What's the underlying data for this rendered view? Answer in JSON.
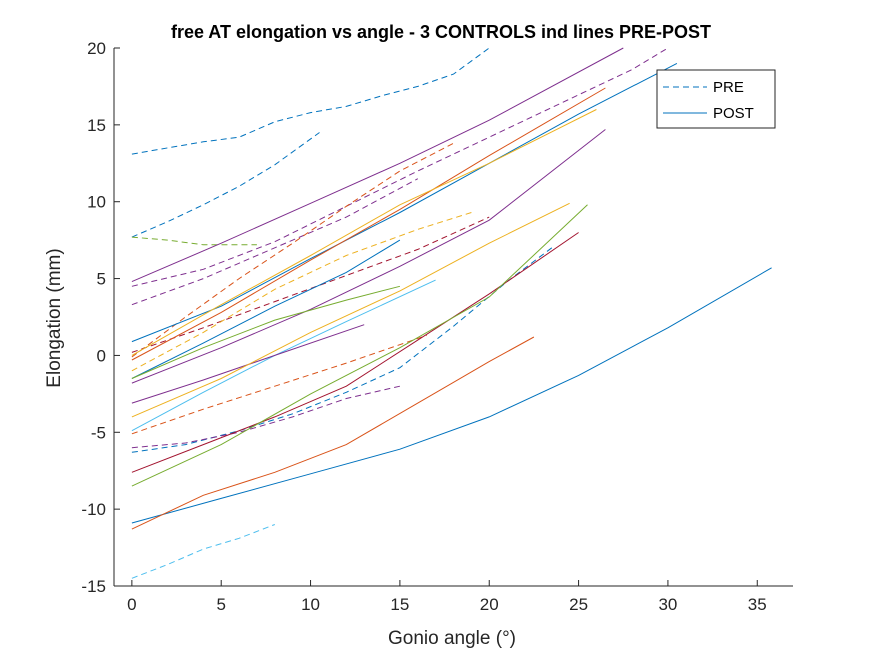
{
  "chart_data": {
    "type": "line",
    "title": "free AT elongation vs angle - 3 CONTROLS ind lines PRE-POST",
    "xlabel": "Gonio angle (°)",
    "ylabel": "Elongation (mm)",
    "xlim": [
      -1,
      37
    ],
    "ylim": [
      -15,
      20
    ],
    "xticks": [
      0,
      5,
      10,
      15,
      20,
      25,
      30,
      35
    ],
    "yticks": [
      -15,
      -10,
      -5,
      0,
      5,
      10,
      15,
      20
    ],
    "grid": false,
    "legend": {
      "position": "top-right",
      "entries": [
        {
          "label": "PRE",
          "style": "dashed",
          "color": "#0072BD"
        },
        {
          "label": "POST",
          "style": "solid",
          "color": "#0072BD"
        }
      ]
    },
    "series": [
      {
        "color": "#0072BD",
        "style": "dashed",
        "x": [
          0,
          2,
          4,
          6,
          8,
          10,
          12,
          14,
          16,
          18,
          20
        ],
        "y": [
          13.1,
          13.5,
          13.9,
          14.2,
          15.2,
          15.8,
          16.2,
          16.9,
          17.5,
          18.3,
          20
        ]
      },
      {
        "color": "#0072BD",
        "style": "dashed",
        "x": [
          0,
          2,
          4,
          6,
          8,
          10.5
        ],
        "y": [
          7.7,
          8.7,
          9.8,
          11.0,
          12.4,
          14.5
        ]
      },
      {
        "color": "#0072BD",
        "style": "dashed",
        "x": [
          0,
          3,
          6,
          9,
          12,
          15,
          18,
          21,
          23.5
        ],
        "y": [
          -6.3,
          -5.8,
          -4.9,
          -3.8,
          -2.4,
          -0.8,
          1.9,
          4.8,
          7.0
        ]
      },
      {
        "color": "#4DBEEE",
        "style": "dashed",
        "x": [
          0,
          2,
          4,
          6,
          8
        ],
        "y": [
          -14.5,
          -13.6,
          -12.6,
          -11.9,
          -11.0
        ]
      },
      {
        "color": "#77AC30",
        "style": "dashed",
        "x": [
          0,
          2,
          4,
          6,
          7
        ],
        "y": [
          7.7,
          7.5,
          7.2,
          7.2,
          7.2
        ]
      },
      {
        "color": "#7E2F8E",
        "style": "dashed",
        "x": [
          0,
          4,
          8,
          12,
          16,
          20,
          24,
          28,
          30
        ],
        "y": [
          4.5,
          5.6,
          7.4,
          9.7,
          12.0,
          14.2,
          16.4,
          18.6,
          20
        ]
      },
      {
        "color": "#7E2F8E",
        "style": "dashed",
        "x": [
          0,
          4,
          8,
          12,
          16
        ],
        "y": [
          3.3,
          5.0,
          7.0,
          9.0,
          11.5
        ]
      },
      {
        "color": "#7E2F8E",
        "style": "dashed",
        "x": [
          0,
          3,
          6,
          9,
          12,
          15
        ],
        "y": [
          -6.0,
          -5.7,
          -5.0,
          -4.0,
          -2.8,
          -2.0
        ]
      },
      {
        "color": "#D95319",
        "style": "dashed",
        "x": [
          0,
          3,
          6,
          9,
          12,
          15,
          18
        ],
        "y": [
          -0.1,
          2.5,
          5.0,
          7.3,
          9.7,
          12.0,
          13.8
        ]
      },
      {
        "color": "#D95319",
        "style": "dashed",
        "x": [
          0,
          4,
          8,
          12,
          16.5
        ],
        "y": [
          -5.1,
          -3.5,
          -2.0,
          -0.5,
          1.3
        ]
      },
      {
        "color": "#A2142F",
        "style": "dashed",
        "x": [
          0,
          4,
          8,
          12,
          16,
          20
        ],
        "y": [
          0.2,
          1.8,
          3.5,
          5.2,
          6.9,
          9.0
        ]
      },
      {
        "color": "#EDB120",
        "style": "dashed",
        "x": [
          0,
          4,
          8,
          12,
          16,
          19
        ],
        "y": [
          -1.0,
          1.5,
          4.3,
          6.5,
          8.2,
          9.3
        ]
      },
      {
        "color": "#0072BD",
        "style": "solid",
        "x": [
          0,
          5,
          10,
          15,
          20,
          25,
          30.5
        ],
        "y": [
          0.9,
          3.2,
          6.3,
          9.3,
          12.5,
          15.7,
          19.0
        ]
      },
      {
        "color": "#0072BD",
        "style": "solid",
        "x": [
          0,
          5,
          10,
          15,
          20,
          25,
          30,
          35.8
        ],
        "y": [
          -10.9,
          -9.3,
          -7.7,
          -6.1,
          -4.0,
          -1.3,
          1.8,
          5.7
        ]
      },
      {
        "color": "#0072BD",
        "style": "solid",
        "x": [
          0,
          4,
          8,
          12,
          15
        ],
        "y": [
          -1.5,
          0.8,
          3.2,
          5.4,
          7.5
        ]
      },
      {
        "color": "#4DBEEE",
        "style": "solid",
        "x": [
          0,
          4,
          8,
          12,
          17
        ],
        "y": [
          -4.9,
          -2.4,
          0.0,
          2.2,
          4.9
        ]
      },
      {
        "color": "#7E2F8E",
        "style": "solid",
        "x": [
          0,
          5,
          10,
          15,
          20,
          27.5
        ],
        "y": [
          4.8,
          7.3,
          9.9,
          12.5,
          15.3,
          20
        ]
      },
      {
        "color": "#7E2F8E",
        "style": "solid",
        "x": [
          0,
          5,
          10,
          15,
          20,
          26.5
        ],
        "y": [
          -1.8,
          0.5,
          3.0,
          5.8,
          8.8,
          14.7
        ]
      },
      {
        "color": "#7E2F8E",
        "style": "solid",
        "x": [
          0,
          4,
          8,
          13
        ],
        "y": [
          -3.1,
          -1.6,
          0.0,
          2.0
        ]
      },
      {
        "color": "#D95319",
        "style": "solid",
        "x": [
          0,
          4,
          8,
          12,
          16,
          20,
          22.5
        ],
        "y": [
          -11.3,
          -9.1,
          -7.6,
          -5.8,
          -3.1,
          -0.4,
          1.2
        ]
      },
      {
        "color": "#D95319",
        "style": "solid",
        "x": [
          0,
          5,
          10,
          15,
          20,
          26.5
        ],
        "y": [
          -0.3,
          2.8,
          6.2,
          9.5,
          13.0,
          17.4
        ]
      },
      {
        "color": "#A2142F",
        "style": "solid",
        "x": [
          0,
          4,
          8,
          12,
          16,
          20,
          25
        ],
        "y": [
          -7.6,
          -5.8,
          -4.0,
          -2.0,
          1.0,
          4.0,
          8.0
        ]
      },
      {
        "color": "#EDB120",
        "style": "solid",
        "x": [
          0,
          5,
          10,
          15,
          20,
          24.5
        ],
        "y": [
          -4.0,
          -1.5,
          1.5,
          4.2,
          7.3,
          9.9
        ]
      },
      {
        "color": "#EDB120",
        "style": "solid",
        "x": [
          0,
          5,
          10,
          15,
          20,
          26
        ],
        "y": [
          0.0,
          3.3,
          6.5,
          9.8,
          12.5,
          16.0
        ]
      },
      {
        "color": "#77AC30",
        "style": "solid",
        "x": [
          0,
          5,
          10,
          15,
          20,
          25.5
        ],
        "y": [
          -8.5,
          -5.8,
          -2.5,
          0.5,
          3.8,
          9.8
        ]
      },
      {
        "color": "#77AC30",
        "style": "solid",
        "x": [
          0,
          4,
          8,
          12,
          15
        ],
        "y": [
          -1.5,
          0.5,
          2.3,
          3.6,
          4.5
        ]
      }
    ]
  }
}
